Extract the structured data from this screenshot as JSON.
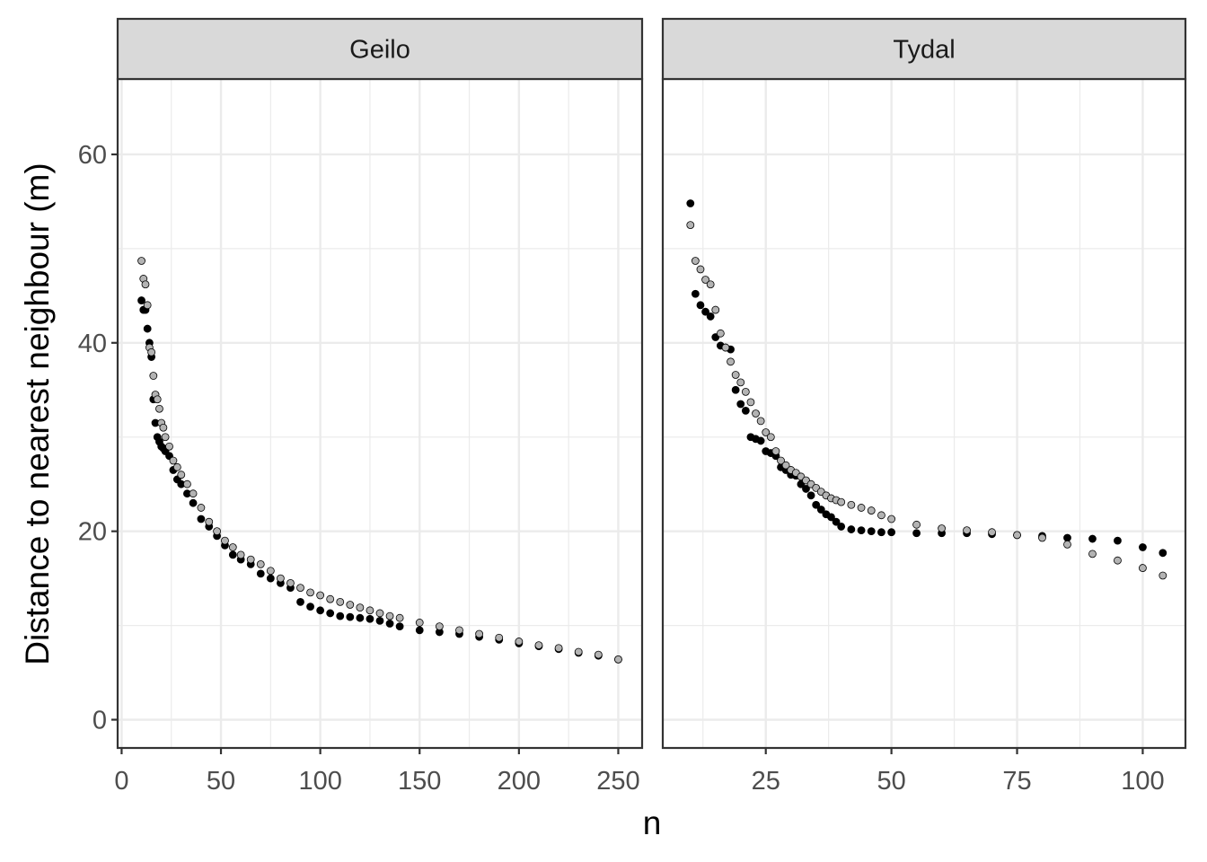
{
  "chart_data": {
    "type": "scatter",
    "xlabel": "n",
    "ylabel": "Distance to nearest neighbour (m)",
    "ylim": [
      -3,
      68
    ],
    "y_ticks": [
      0,
      20,
      40,
      60
    ],
    "grid": true,
    "legend": "none",
    "colors": {
      "series_a": "#000000",
      "series_b": "#b3b3b3",
      "outline": "#000000",
      "strip": "#d9d9d9",
      "grid": "#ebebeb"
    },
    "panels": [
      {
        "title": "Geilo",
        "xlim": [
          -2,
          262
        ],
        "x_ticks": [
          0,
          50,
          100,
          150,
          200,
          250
        ],
        "series": [
          {
            "name": "black",
            "x": [
              10,
              11,
              12,
              13,
              14,
              15,
              16,
              17,
              18,
              19,
              20,
              21,
              22,
              24,
              26,
              28,
              30,
              33,
              36,
              40,
              44,
              48,
              52,
              56,
              60,
              65,
              70,
              75,
              80,
              85,
              90,
              95,
              100,
              105,
              110,
              115,
              120,
              125,
              130,
              135,
              140,
              150,
              160,
              170,
              180,
              190,
              200,
              210,
              220,
              230,
              240,
              250
            ],
            "y": [
              44.5,
              43.5,
              43.5,
              41.5,
              40.0,
              38.5,
              34.0,
              31.5,
              30.0,
              29.5,
              29.0,
              28.8,
              28.5,
              28.0,
              26.5,
              25.5,
              25.0,
              24.0,
              23.0,
              21.3,
              20.5,
              19.5,
              18.5,
              17.5,
              17.0,
              16.5,
              15.5,
              15.0,
              14.5,
              14.0,
              12.5,
              12.0,
              11.6,
              11.3,
              11.0,
              10.9,
              10.8,
              10.7,
              10.5,
              10.2,
              9.9,
              9.5,
              9.3,
              9.1,
              8.8,
              8.5,
              8.1,
              7.8,
              7.5,
              7.1,
              6.8,
              6.4
            ]
          },
          {
            "name": "grey",
            "x": [
              10,
              11,
              12,
              13,
              14,
              15,
              16,
              17,
              18,
              19,
              20,
              21,
              22,
              24,
              26,
              28,
              30,
              33,
              36,
              40,
              44,
              48,
              52,
              56,
              60,
              65,
              70,
              75,
              80,
              85,
              90,
              95,
              100,
              105,
              110,
              115,
              120,
              125,
              130,
              135,
              140,
              150,
              160,
              170,
              180,
              190,
              200,
              210,
              220,
              230,
              240,
              250
            ],
            "y": [
              48.7,
              46.8,
              46.2,
              44.0,
              39.5,
              39.0,
              36.5,
              34.5,
              34.0,
              33.0,
              31.5,
              31.0,
              30.0,
              29.0,
              27.5,
              26.8,
              26.0,
              25.0,
              24.0,
              22.5,
              21.0,
              20.0,
              19.0,
              18.3,
              17.5,
              17.0,
              16.5,
              15.8,
              15.0,
              14.5,
              14.0,
              13.5,
              13.2,
              12.8,
              12.5,
              12.2,
              11.9,
              11.6,
              11.3,
              11.0,
              10.8,
              10.3,
              9.9,
              9.5,
              9.1,
              8.7,
              8.3,
              7.9,
              7.6,
              7.2,
              6.9,
              6.4
            ]
          }
        ]
      },
      {
        "title": "Tydal",
        "xlim": [
          4.5,
          108.5
        ],
        "x_ticks": [
          25,
          50,
          75,
          100
        ],
        "series": [
          {
            "name": "black",
            "x": [
              10,
              11,
              12,
              13,
              14,
              15,
              16,
              17,
              18,
              19,
              20,
              21,
              22,
              23,
              24,
              25,
              26,
              27,
              28,
              29,
              30,
              31,
              32,
              33,
              34,
              35,
              36,
              37,
              38,
              39,
              40,
              42,
              44,
              46,
              48,
              50,
              55,
              60,
              65,
              70,
              75,
              80,
              85,
              90,
              95,
              100,
              104
            ],
            "y": [
              54.8,
              45.2,
              44.0,
              43.3,
              42.8,
              40.6,
              39.7,
              39.5,
              39.3,
              35.0,
              33.5,
              32.8,
              30.0,
              29.8,
              29.6,
              28.5,
              28.3,
              28.0,
              26.8,
              26.5,
              26.0,
              25.9,
              25.0,
              24.5,
              23.8,
              22.8,
              22.3,
              21.8,
              21.5,
              21.0,
              20.5,
              20.2,
              20.1,
              20.0,
              19.9,
              19.9,
              19.8,
              19.8,
              19.8,
              19.7,
              19.6,
              19.5,
              19.3,
              19.2,
              19.0,
              18.3,
              17.7
            ]
          },
          {
            "name": "grey",
            "x": [
              10,
              11,
              12,
              13,
              14,
              15,
              16,
              17,
              18,
              19,
              20,
              21,
              22,
              23,
              24,
              25,
              26,
              27,
              28,
              29,
              30,
              31,
              32,
              33,
              34,
              35,
              36,
              37,
              38,
              39,
              40,
              42,
              44,
              46,
              48,
              50,
              55,
              60,
              65,
              70,
              75,
              80,
              85,
              90,
              95,
              100,
              104
            ],
            "y": [
              52.5,
              48.7,
              47.8,
              46.7,
              46.2,
              43.5,
              41.0,
              39.5,
              38.0,
              36.6,
              35.8,
              34.8,
              33.7,
              32.5,
              31.7,
              30.5,
              30.0,
              28.5,
              27.5,
              27.0,
              26.5,
              26.2,
              25.8,
              25.4,
              25.0,
              24.6,
              24.2,
              23.8,
              23.5,
              23.3,
              23.1,
              22.8,
              22.5,
              22.2,
              21.7,
              21.3,
              20.7,
              20.3,
              20.1,
              19.9,
              19.6,
              19.3,
              18.6,
              17.6,
              16.9,
              16.1,
              15.3
            ]
          }
        ]
      }
    ]
  }
}
